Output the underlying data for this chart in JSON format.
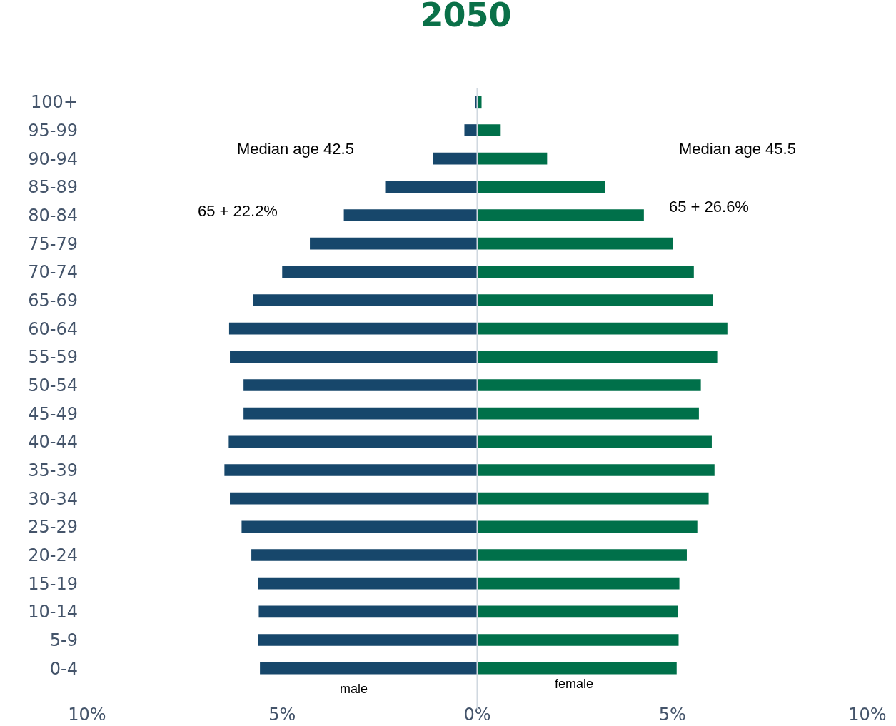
{
  "chart_data": {
    "type": "bar",
    "title": "2050",
    "orientation": "horizontal",
    "categories": [
      "100+",
      "95-99",
      "90-94",
      "85-89",
      "80-84",
      "75-79",
      "70-74",
      "65-69",
      "60-64",
      "55-59",
      "50-54",
      "45-49",
      "40-44",
      "35-39",
      "30-34",
      "25-29",
      "20-24",
      "15-19",
      "10-14",
      "5-9",
      "0-4"
    ],
    "series": [
      {
        "name": "male",
        "color": "#17476b",
        "values": [
          -0.05,
          -0.33,
          -1.14,
          -2.36,
          -3.42,
          -4.29,
          -5.0,
          -5.75,
          -6.36,
          -6.34,
          -5.99,
          -5.99,
          -6.37,
          -6.48,
          -6.34,
          -6.04,
          -5.79,
          -5.62,
          -5.6,
          -5.62,
          -5.57
        ]
      },
      {
        "name": "female",
        "color": "#00704a",
        "values": [
          0.11,
          0.6,
          1.79,
          3.28,
          4.27,
          5.02,
          5.55,
          6.04,
          6.41,
          6.15,
          5.73,
          5.68,
          6.01,
          6.08,
          5.93,
          5.64,
          5.37,
          5.18,
          5.15,
          5.16,
          5.11
        ]
      }
    ],
    "xlim": [
      -10,
      10
    ],
    "xticks": [
      {
        "value": -10,
        "label": "10%"
      },
      {
        "value": -5,
        "label": "5%"
      },
      {
        "value": 0,
        "label": "0%"
      },
      {
        "value": 5,
        "label": "5%"
      },
      {
        "value": 10,
        "label": "10%"
      }
    ],
    "annotations": [
      "Median age 42.5",
      "65 + 22.2%",
      "Median age 45.5",
      "65 + 26.6%"
    ],
    "ref_lines": [
      {
        "axis": "x",
        "value": 0,
        "color": "#d0d8e0"
      }
    ],
    "stacked": true,
    "grid": false,
    "legend": false
  }
}
